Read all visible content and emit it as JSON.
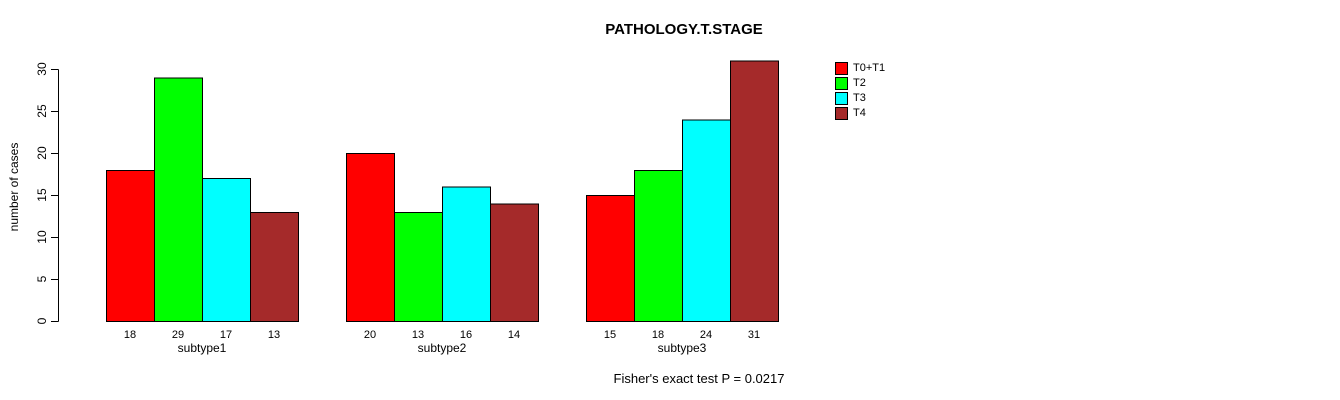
{
  "chart_data": {
    "type": "bar",
    "title": "PATHOLOGY.T.STAGE",
    "ylabel": "number of cases",
    "xlabel": "",
    "categories": [
      "subtype1",
      "subtype2",
      "subtype3"
    ],
    "series": [
      {
        "name": "T0+T1",
        "color": "#FF0000",
        "values": [
          18,
          20,
          15
        ]
      },
      {
        "name": "T2",
        "color": "#00FF00",
        "values": [
          29,
          13,
          18
        ]
      },
      {
        "name": "T3",
        "color": "#00FFFF",
        "values": [
          17,
          16,
          24
        ]
      },
      {
        "name": "T4",
        "color": "#A52A2A",
        "values": [
          13,
          14,
          31
        ]
      }
    ],
    "y_ticks": [
      0,
      5,
      10,
      15,
      20,
      25,
      30
    ],
    "ylim": [
      0,
      31
    ],
    "grid": false,
    "legend_position": "right-outside",
    "bar_border_color": "#000000",
    "show_value_labels_below_bars": true,
    "footnote": "Fisher's exact test P = 0.0217"
  }
}
